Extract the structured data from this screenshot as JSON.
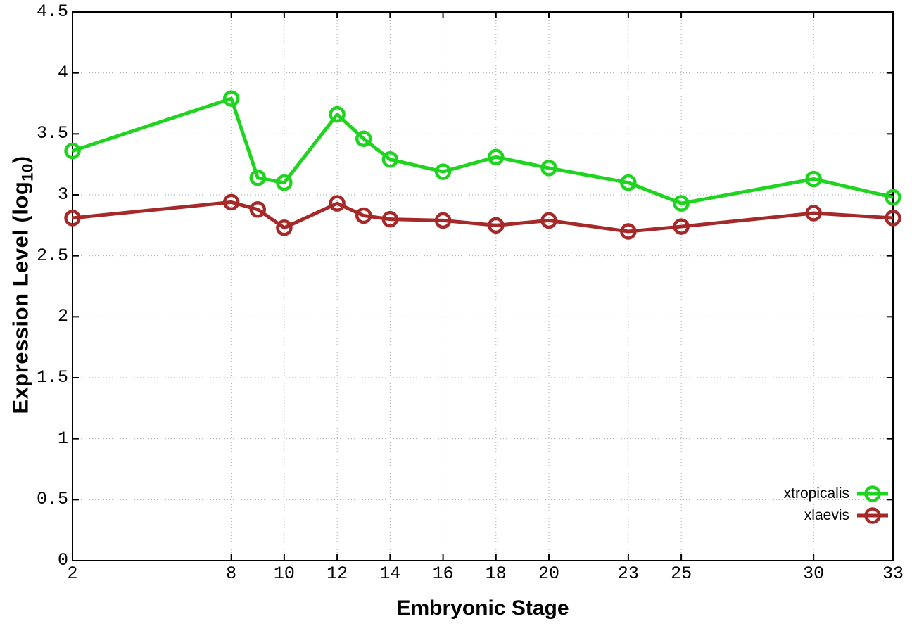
{
  "chart_data": {
    "type": "line",
    "title": "",
    "xlabel": "Embryonic Stage",
    "ylabel": "Expression Level (log10)",
    "ylabel_parts": {
      "main": "Expression Level (log",
      "sub": "10",
      "close": ")"
    },
    "xlim": [
      2,
      33
    ],
    "ylim": [
      0,
      4.5
    ],
    "grid": true,
    "legend_position": "bottom-right",
    "x_ticks": [
      2,
      8,
      10,
      12,
      14,
      16,
      18,
      20,
      23,
      25,
      30,
      33
    ],
    "x_tick_labels": [
      "2",
      "8",
      "10",
      "12",
      "14",
      "16",
      "18",
      "20",
      "23",
      "25",
      "30",
      "33"
    ],
    "y_ticks": [
      0,
      0.5,
      1,
      1.5,
      2,
      2.5,
      3,
      3.5,
      4,
      4.5
    ],
    "y_tick_labels": [
      "0",
      "0.5",
      "1",
      "1.5",
      "2",
      "2.5",
      "3",
      "3.5",
      "4",
      "4.5"
    ],
    "x": [
      2,
      8,
      9,
      10,
      12,
      13,
      14,
      16,
      18,
      20,
      23,
      25,
      30,
      33
    ],
    "series": [
      {
        "name": "xtropicalis",
        "color": "#1ed41e",
        "values": [
          3.36,
          3.79,
          3.14,
          3.1,
          3.66,
          3.46,
          3.29,
          3.19,
          3.31,
          3.22,
          3.1,
          2.93,
          3.13,
          2.98
        ]
      },
      {
        "name": "xlaevis",
        "color": "#a62929",
        "values": [
          2.81,
          2.94,
          2.88,
          2.73,
          2.93,
          2.83,
          2.8,
          2.79,
          2.75,
          2.79,
          2.7,
          2.74,
          2.85,
          2.81
        ]
      }
    ]
  },
  "colors": {
    "background": "#ffffff",
    "axis": "#000000",
    "grid": "#a8a8a8",
    "text": "#000000"
  }
}
